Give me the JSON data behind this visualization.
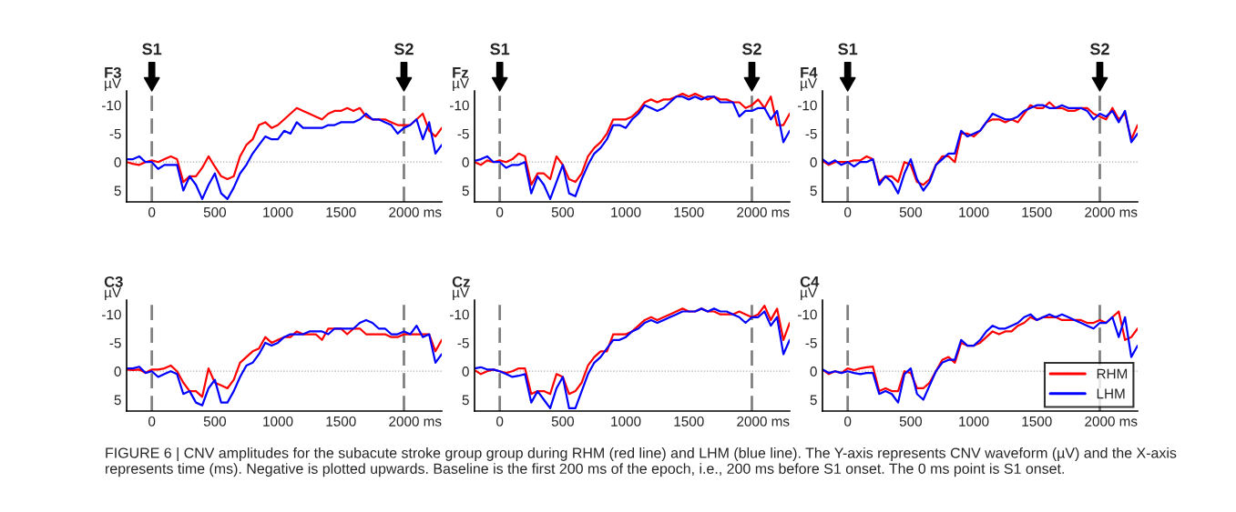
{
  "chart_data": [
    {
      "type": "line",
      "title": "F3",
      "ylabel": "µV",
      "xlabel": "ms",
      "xlim": [
        -200,
        2300
      ],
      "ylim": [
        7,
        -12.5
      ],
      "xticks": [
        0,
        500,
        1000,
        1500,
        2000
      ],
      "yticks": [
        -10,
        -5,
        0,
        5
      ],
      "grid": false,
      "legend": false,
      "line_style": "solid",
      "x": [
        -200,
        -150,
        -100,
        -50,
        0,
        50,
        100,
        150,
        200,
        250,
        300,
        350,
        400,
        450,
        500,
        550,
        600,
        650,
        700,
        750,
        800,
        850,
        900,
        950,
        1000,
        1050,
        1100,
        1150,
        1200,
        1250,
        1300,
        1350,
        1400,
        1450,
        1500,
        1550,
        1600,
        1650,
        1700,
        1750,
        1800,
        1850,
        1900,
        1950,
        2000,
        2050,
        2100,
        2150,
        2200,
        2250,
        2300
      ],
      "ref_lines": [
        {
          "axis": "y",
          "value": 0,
          "color": "#aaaaaa",
          "line_style": "dotted"
        },
        {
          "axis": "x",
          "value": 0,
          "label": "S1",
          "color": "#808080",
          "line_style": "dashed"
        },
        {
          "axis": "x",
          "value": 2000,
          "label": "S2",
          "color": "#808080",
          "line_style": "dashed"
        }
      ],
      "series": [
        {
          "color": "#ff0000",
          "values": [
            0,
            0.3,
            0.5,
            0,
            -0.3,
            0,
            -0.5,
            -1,
            -0.5,
            3.5,
            2.5,
            2.5,
            1,
            -1,
            0.8,
            2.5,
            3,
            2.5,
            -1,
            -3,
            -4,
            -6.5,
            -7,
            -6,
            -6.5,
            -7.5,
            -8.5,
            -9.5,
            -9,
            -8.5,
            -8,
            -7.5,
            -8.5,
            -9,
            -9,
            -9.5,
            -9,
            -9.5,
            -8,
            -7.5,
            -7.5,
            -7.5,
            -7,
            -6.5,
            -6.5,
            -6.5,
            -7.5,
            -8.5,
            -5.5,
            -4.5,
            -6
          ]
        },
        {
          "color": "#0000ff",
          "values": [
            -0.5,
            -0.5,
            -1,
            0,
            0,
            1.2,
            0.5,
            0.5,
            0.5,
            5,
            2.5,
            4,
            6.5,
            4,
            2,
            5.5,
            6.5,
            4.5,
            2,
            0.5,
            -1.5,
            -3,
            -4.5,
            -4,
            -4,
            -5.5,
            -5,
            -7,
            -6,
            -6,
            -6,
            -6,
            -6.5,
            -6.5,
            -7,
            -7,
            -7,
            -7.5,
            -8.5,
            -7.5,
            -7.5,
            -7,
            -6.5,
            -5,
            -6,
            -6.5,
            -7.5,
            -4,
            -7,
            -1.5,
            -3
          ]
        }
      ],
      "annotations": [
        "FIGURE 6 | CNV amplitudes for the subacute stroke group group during RHM (red line) and LHM (blue line). The Y-axis represents CNV waveform (µV) and the X-axis represents time (ms). Negative is plotted upwards. Baseline is the first 200 ms of the epoch, i.e., 200 ms before S1 onset. The 0 ms point is S1 onset."
      ]
    },
    {
      "type": "line",
      "title": "Fz",
      "ylabel": "µV",
      "xlabel": "ms",
      "xlim": [
        -200,
        2300
      ],
      "ylim": [
        7,
        -12.5
      ],
      "xticks": [
        0,
        500,
        1000,
        1500,
        2000
      ],
      "yticks": [
        -10,
        -5,
        0,
        5
      ],
      "grid": false,
      "legend": false,
      "line_style": "solid",
      "x": [
        -200,
        -150,
        -100,
        -50,
        0,
        50,
        100,
        150,
        200,
        250,
        300,
        350,
        400,
        450,
        500,
        550,
        600,
        650,
        700,
        750,
        800,
        850,
        900,
        950,
        1000,
        1050,
        1100,
        1150,
        1200,
        1250,
        1300,
        1350,
        1400,
        1450,
        1500,
        1550,
        1600,
        1650,
        1700,
        1750,
        1800,
        1850,
        1900,
        1950,
        2000,
        2050,
        2100,
        2150,
        2200,
        2250,
        2300
      ],
      "ref_lines": [
        {
          "axis": "y",
          "value": 0,
          "color": "#aaaaaa",
          "line_style": "dotted"
        },
        {
          "axis": "x",
          "value": 0,
          "label": "S1",
          "color": "#808080",
          "line_style": "dashed"
        },
        {
          "axis": "x",
          "value": 2000,
          "label": "S2",
          "color": "#808080",
          "line_style": "dashed"
        }
      ],
      "series": [
        {
          "color": "#ff0000",
          "values": [
            0,
            0.5,
            -0.3,
            0,
            -0.3,
            0,
            -0.5,
            -1.5,
            -1,
            4,
            2,
            2,
            3,
            -1,
            0.5,
            3,
            3.5,
            2,
            -1,
            -2.5,
            -3.5,
            -5,
            -7.5,
            -7.5,
            -7.5,
            -8,
            -9,
            -10.5,
            -11,
            -10.5,
            -11,
            -11,
            -11.5,
            -12,
            -11.5,
            -12,
            -11.5,
            -11,
            -11.5,
            -11,
            -11,
            -10.5,
            -10.5,
            -9.5,
            -10,
            -11,
            -9.5,
            -11.5,
            -6.5,
            -6.5,
            -8.5
          ]
        },
        {
          "color": "#0000ff",
          "values": [
            -0.2,
            -0.5,
            -1,
            0,
            0,
            1,
            0.5,
            0.5,
            0,
            5.5,
            2.5,
            4,
            6.5,
            3.5,
            0.5,
            5.5,
            6,
            3,
            0.5,
            -1.5,
            -2.5,
            -4,
            -6.5,
            -6.5,
            -6,
            -7.5,
            -8.5,
            -10,
            -9.5,
            -9,
            -9.5,
            -10.5,
            -11.5,
            -11.5,
            -11,
            -11.5,
            -11,
            -11.5,
            -11.5,
            -10.5,
            -10.5,
            -10.5,
            -8,
            -9,
            -9,
            -9.5,
            -9.5,
            -7.5,
            -9,
            -3.5,
            -5.5
          ]
        }
      ]
    },
    {
      "type": "line",
      "title": "F4",
      "ylabel": "µV",
      "xlabel": "ms",
      "xlim": [
        -200,
        2300
      ],
      "ylim": [
        7,
        -12.5
      ],
      "xticks": [
        0,
        500,
        1000,
        1500,
        2000
      ],
      "yticks": [
        -10,
        -5,
        0,
        5
      ],
      "grid": false,
      "legend": false,
      "line_style": "solid",
      "x": [
        -200,
        -150,
        -100,
        -50,
        0,
        50,
        100,
        150,
        200,
        250,
        300,
        350,
        400,
        450,
        500,
        550,
        600,
        650,
        700,
        750,
        800,
        850,
        900,
        950,
        1000,
        1050,
        1100,
        1150,
        1200,
        1250,
        1300,
        1350,
        1400,
        1450,
        1500,
        1550,
        1600,
        1650,
        1700,
        1750,
        1800,
        1850,
        1900,
        1950,
        2000,
        2050,
        2100,
        2150,
        2200,
        2250,
        2300
      ],
      "ref_lines": [
        {
          "axis": "y",
          "value": 0,
          "color": "#aaaaaa",
          "line_style": "dotted"
        },
        {
          "axis": "x",
          "value": 0,
          "label": "S1",
          "color": "#808080",
          "line_style": "dashed"
        },
        {
          "axis": "x",
          "value": 2000,
          "label": "S2",
          "color": "#808080",
          "line_style": "dashed"
        }
      ],
      "series": [
        {
          "color": "#ff0000",
          "values": [
            -0.2,
            0.5,
            0,
            0,
            0,
            -0.3,
            -0.3,
            -1,
            -0.5,
            3.5,
            2.5,
            2.5,
            3.5,
            0,
            0.5,
            3.5,
            4,
            3,
            0.5,
            -1,
            -1,
            0,
            -5,
            -5,
            -4.5,
            -5.5,
            -7,
            -7.5,
            -7.5,
            -7,
            -7.5,
            -7,
            -8.5,
            -10,
            -9.5,
            -9.5,
            -10.5,
            -9.5,
            -9.5,
            -9,
            -9,
            -9.5,
            -9.5,
            -8.5,
            -8,
            -7.5,
            -9.5,
            -7.5,
            -8.5,
            -4,
            -6.5
          ]
        },
        {
          "color": "#0000ff",
          "values": [
            -0.5,
            0.3,
            -0.3,
            0.5,
            0,
            0.8,
            0,
            0,
            -0.5,
            4,
            2.5,
            3.5,
            5.5,
            2,
            -0.5,
            3,
            5,
            3.5,
            0.5,
            -0.5,
            -1.5,
            -1.5,
            -5.5,
            -4.5,
            -5,
            -5.5,
            -7,
            -8.5,
            -8,
            -7.5,
            -7.5,
            -8,
            -9,
            -9.5,
            -10,
            -10,
            -9.5,
            -9.5,
            -10,
            -9.5,
            -9.5,
            -9.5,
            -9,
            -7.5,
            -8.5,
            -8,
            -9,
            -7,
            -9,
            -3.5,
            -5
          ]
        }
      ]
    },
    {
      "type": "line",
      "title": "C3",
      "ylabel": "µV",
      "xlabel": "ms",
      "xlim": [
        -200,
        2300
      ],
      "ylim": [
        7,
        -12.5
      ],
      "xticks": [
        0,
        500,
        1000,
        1500,
        2000
      ],
      "yticks": [
        -10,
        -5,
        0,
        5
      ],
      "grid": false,
      "legend": false,
      "line_style": "solid",
      "x": [
        -200,
        -150,
        -100,
        -50,
        0,
        50,
        100,
        150,
        200,
        250,
        300,
        350,
        400,
        450,
        500,
        550,
        600,
        650,
        700,
        750,
        800,
        850,
        900,
        950,
        1000,
        1050,
        1100,
        1150,
        1200,
        1250,
        1300,
        1350,
        1400,
        1450,
        1500,
        1550,
        1600,
        1650,
        1700,
        1750,
        1800,
        1850,
        1900,
        1950,
        2000,
        2050,
        2100,
        2150,
        2200,
        2250,
        2300
      ],
      "ref_lines": [
        {
          "axis": "y",
          "value": 0,
          "color": "#aaaaaa",
          "line_style": "dotted"
        },
        {
          "axis": "x",
          "value": 0,
          "color": "#808080",
          "line_style": "dashed"
        },
        {
          "axis": "x",
          "value": 2000,
          "color": "#808080",
          "line_style": "dashed"
        }
      ],
      "series": [
        {
          "color": "#ff0000",
          "values": [
            -0.3,
            -0.2,
            -0.3,
            0.3,
            -0.3,
            -0.3,
            -0.5,
            -1,
            0,
            2,
            3.5,
            3.5,
            4.5,
            -0.5,
            2,
            2.5,
            3,
            1.5,
            -1.5,
            -2.5,
            -3.5,
            -4,
            -6,
            -5,
            -5.5,
            -6,
            -6,
            -7,
            -6.5,
            -6.5,
            -6.5,
            -5.5,
            -7.5,
            -7.5,
            -7.5,
            -6.5,
            -7.5,
            -7.5,
            -6.5,
            -6.5,
            -6.5,
            -6.5,
            -6,
            -6,
            -6.5,
            -6.5,
            -6.5,
            -6.5,
            -6.5,
            -3.5,
            -5.5
          ]
        },
        {
          "color": "#0000ff",
          "values": [
            -0.5,
            -0.5,
            -0.8,
            0.3,
            0,
            1,
            0.5,
            0,
            0.5,
            4,
            3.5,
            5.5,
            6,
            3,
            1.5,
            5.5,
            5.5,
            3.5,
            1,
            -1,
            -1.5,
            -3,
            -5,
            -4.5,
            -5,
            -6,
            -6.5,
            -6.5,
            -6.5,
            -7,
            -7,
            -7,
            -6.5,
            -7.5,
            -7.5,
            -7.5,
            -7.5,
            -8.5,
            -9,
            -8.5,
            -7.5,
            -7.5,
            -6.5,
            -6.5,
            -7,
            -6.5,
            -8,
            -6,
            -6.5,
            -1.5,
            -3
          ]
        }
      ]
    },
    {
      "type": "line",
      "title": "Cz",
      "ylabel": "µV",
      "xlabel": "ms",
      "xlim": [
        -200,
        2300
      ],
      "ylim": [
        7,
        -12.5
      ],
      "xticks": [
        0,
        500,
        1000,
        1500,
        2000
      ],
      "yticks": [
        -10,
        -5,
        0,
        5
      ],
      "grid": false,
      "legend": false,
      "line_style": "solid",
      "x": [
        -200,
        -150,
        -100,
        -50,
        0,
        50,
        100,
        150,
        200,
        250,
        300,
        350,
        400,
        450,
        500,
        550,
        600,
        650,
        700,
        750,
        800,
        850,
        900,
        950,
        1000,
        1050,
        1100,
        1150,
        1200,
        1250,
        1300,
        1350,
        1400,
        1450,
        1500,
        1550,
        1600,
        1650,
        1700,
        1750,
        1800,
        1850,
        1900,
        1950,
        2000,
        2050,
        2100,
        2150,
        2200,
        2250,
        2300
      ],
      "ref_lines": [
        {
          "axis": "y",
          "value": 0,
          "color": "#aaaaaa",
          "line_style": "dotted"
        },
        {
          "axis": "x",
          "value": 0,
          "color": "#808080",
          "line_style": "dashed"
        },
        {
          "axis": "x",
          "value": 2000,
          "color": "#808080",
          "line_style": "dashed"
        }
      ],
      "series": [
        {
          "color": "#ff0000",
          "values": [
            -0.2,
            0.5,
            0,
            -0.3,
            0,
            0.3,
            0,
            -0.5,
            -0.5,
            4,
            3.5,
            3.5,
            4,
            0.5,
            1,
            4,
            3.5,
            2,
            -1,
            -2.5,
            -3.5,
            -3.5,
            -6.5,
            -6.5,
            -6.5,
            -7,
            -8,
            -9,
            -9.5,
            -9,
            -9.5,
            -10,
            -10.5,
            -11,
            -10.5,
            -10.5,
            -11,
            -10.5,
            -10.5,
            -10,
            -10,
            -10,
            -10.5,
            -10,
            -9.5,
            -10,
            -11.5,
            -9,
            -11,
            -5.5,
            -8.5
          ]
        },
        {
          "color": "#0000ff",
          "values": [
            -0.5,
            -0.7,
            -0.3,
            -0.3,
            0,
            0.5,
            1,
            0.8,
            0.5,
            5.5,
            3.5,
            5,
            6.5,
            3,
            1,
            6.5,
            6.5,
            3.5,
            0.5,
            -1.5,
            -2.5,
            -4,
            -5.5,
            -5.5,
            -6,
            -7,
            -7.5,
            -8.5,
            -9,
            -8.5,
            -9,
            -9.5,
            -10,
            -10.5,
            -10.5,
            -10.5,
            -11,
            -10.5,
            -11,
            -10.5,
            -10.5,
            -10,
            -9.5,
            -8.5,
            -9.5,
            -9.5,
            -10.5,
            -8,
            -9.5,
            -3,
            -5.5
          ]
        }
      ]
    },
    {
      "type": "line",
      "title": "C4",
      "ylabel": "µV",
      "xlabel": "ms",
      "xlim": [
        -200,
        2300
      ],
      "ylim": [
        7,
        -12.5
      ],
      "xticks": [
        0,
        500,
        1000,
        1500,
        2000
      ],
      "yticks": [
        -10,
        -5,
        0,
        5
      ],
      "grid": false,
      "legend": "bottom right",
      "line_style": "solid",
      "x": [
        -200,
        -150,
        -100,
        -50,
        0,
        50,
        100,
        150,
        200,
        250,
        300,
        350,
        400,
        450,
        500,
        550,
        600,
        650,
        700,
        750,
        800,
        850,
        900,
        950,
        1000,
        1050,
        1100,
        1150,
        1200,
        1250,
        1300,
        1350,
        1400,
        1450,
        1500,
        1550,
        1600,
        1650,
        1700,
        1750,
        1800,
        1850,
        1900,
        1950,
        2000,
        2050,
        2100,
        2150,
        2200,
        2250,
        2300
      ],
      "ref_lines": [
        {
          "axis": "y",
          "value": 0,
          "color": "#aaaaaa",
          "line_style": "dotted"
        },
        {
          "axis": "x",
          "value": 0,
          "color": "#808080",
          "line_style": "dashed"
        },
        {
          "axis": "x",
          "value": 2000,
          "color": "#808080",
          "line_style": "dashed"
        }
      ],
      "series": [
        {
          "name": "RHM",
          "color": "#ff0000",
          "values": [
            -0.3,
            0.5,
            0,
            0.3,
            -0.5,
            -0.2,
            -0.5,
            -0.7,
            -0.8,
            3.5,
            3,
            3.5,
            3.5,
            0,
            0.3,
            3,
            3,
            2,
            0,
            -2,
            -2.5,
            -1.5,
            -5,
            -4.5,
            -4.5,
            -5,
            -6,
            -7,
            -6.5,
            -7,
            -7,
            -8,
            -8.5,
            -9.5,
            -9,
            -9.5,
            -9.5,
            -9.5,
            -9,
            -9,
            -9,
            -9,
            -8.5,
            -8.5,
            -9,
            -8.5,
            -9.5,
            -10.5,
            -5.5,
            -6,
            -7.5
          ]
        },
        {
          "name": "LHM",
          "color": "#0000ff",
          "values": [
            -0.3,
            0.3,
            0,
            0.3,
            0,
            0.3,
            0.5,
            0.3,
            0.3,
            4,
            3.5,
            4,
            5.5,
            0.5,
            -0.5,
            4,
            5,
            2.5,
            0,
            -1.5,
            -2,
            -2,
            -5.5,
            -4.5,
            -4.5,
            -5.5,
            -7,
            -8,
            -7.5,
            -7.5,
            -8,
            -8.5,
            -9.5,
            -10,
            -9,
            -9.5,
            -10,
            -9.5,
            -10,
            -9.5,
            -9,
            -8.5,
            -8,
            -7.5,
            -8.5,
            -8.5,
            -9.5,
            -6,
            -9.5,
            -2.5,
            -4.5
          ]
        }
      ]
    }
  ]
}
